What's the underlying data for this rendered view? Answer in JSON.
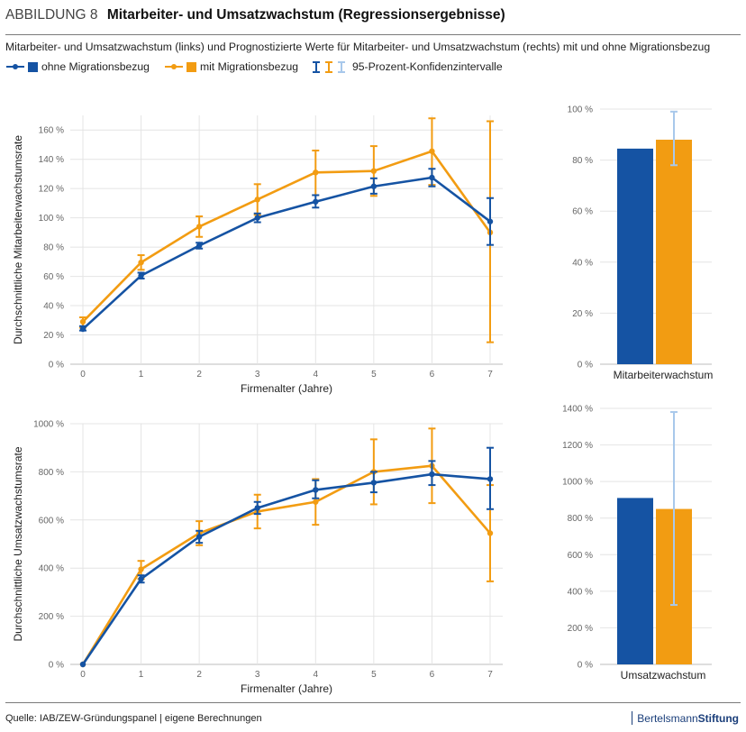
{
  "header": {
    "label": "ABBILDUNG 8",
    "title": "Mitarbeiter- und Umsatzwachstum (Regressionsergebnisse)"
  },
  "subtitle": "Mitarbeiter- und Umsatzwachstum (links) und Prognostizierte Werte für Mitarbeiter- und Umsatzwachstum (rechts) mit und ohne Migrationsbezug",
  "legend": {
    "series1": "ohne Migrationsbezug",
    "series2": "mit Migrationsbezug",
    "ci": "95-Prozent-Konfidenzintervalle"
  },
  "colors": {
    "blue": "#1553a3",
    "orange": "#f29c12",
    "light_blue": "#a8c8eb"
  },
  "footer": {
    "source": "Quelle: IAB/ZEW-Gründungspanel | eigene Berechnungen",
    "brand_normal": "Bertelsmann",
    "brand_bold": "Stiftung"
  },
  "chart_data": [
    {
      "type": "line",
      "id": "employment-line",
      "xlabel": "Firmenalter (Jahre)",
      "ylabel": "Durchschnittliche Mitarbeiterwachstumsrate",
      "x": [
        0,
        1,
        2,
        3,
        4,
        5,
        6,
        7
      ],
      "ylim": [
        0,
        170
      ],
      "yticks": [
        0,
        20,
        40,
        60,
        80,
        100,
        120,
        140,
        160
      ],
      "ytick_labels": [
        "0 %",
        "20 %",
        "40 %",
        "60 %",
        "80 %",
        "100 %",
        "120 %",
        "140 %",
        "160 %"
      ],
      "series": [
        {
          "name": "ohne Migrationsbezug",
          "values": [
            24,
            60.5,
            81,
            100,
            111,
            121.5,
            127.5,
            97.5
          ],
          "ci_low": [
            23,
            58.5,
            79,
            97,
            107,
            116.5,
            121.5,
            81.5
          ],
          "ci_high": [
            26,
            62.5,
            83,
            103,
            115.5,
            127,
            133.5,
            113.5
          ]
        },
        {
          "name": "mit Migrationsbezug",
          "values": [
            29,
            69.5,
            94,
            112.5,
            131,
            132,
            145.5,
            90
          ],
          "ci_low": [
            25,
            64.5,
            87,
            102,
            115.5,
            115,
            122.5,
            15
          ],
          "ci_high": [
            32,
            74.5,
            101,
            123,
            146,
            149,
            168,
            166
          ]
        }
      ]
    },
    {
      "type": "bar",
      "id": "employment-bar",
      "categories": [
        "Mitarbeiterwachstum"
      ],
      "ylim": [
        0,
        100
      ],
      "yticks": [
        0,
        20,
        40,
        60,
        80,
        100
      ],
      "ytick_labels": [
        "0 %",
        "20 %",
        "40 %",
        "60 %",
        "80 %",
        "100 %"
      ],
      "series": [
        {
          "name": "ohne Migrationsbezug",
          "values": [
            84.5
          ]
        },
        {
          "name": "mit Migrationsbezug",
          "values": [
            88
          ],
          "ci_low": [
            78
          ],
          "ci_high": [
            99
          ]
        }
      ]
    },
    {
      "type": "line",
      "id": "revenue-line",
      "xlabel": "Firmenalter (Jahre)",
      "ylabel": "Durchschnittliche Umsatzwachstumsrate",
      "x": [
        0,
        1,
        2,
        3,
        4,
        5,
        6,
        7
      ],
      "ylim": [
        0,
        1000
      ],
      "yticks": [
        0,
        200,
        400,
        600,
        800,
        1000
      ],
      "ytick_labels": [
        "0 %",
        "200 %",
        "400 %",
        "600 %",
        "800 %",
        "1000 %"
      ],
      "series": [
        {
          "name": "ohne Migrationsbezug",
          "values": [
            0,
            355,
            530,
            650,
            725,
            755,
            790,
            770
          ],
          "ci_low": [
            0,
            340,
            505,
            625,
            690,
            715,
            745,
            645
          ],
          "ci_high": [
            0,
            370,
            555,
            675,
            765,
            800,
            845,
            900
          ]
        },
        {
          "name": "mit Migrationsbezug",
          "values": [
            0,
            395,
            545,
            635,
            675,
            800,
            825,
            545
          ],
          "ci_low": [
            0,
            355,
            495,
            565,
            580,
            665,
            670,
            345
          ],
          "ci_high": [
            0,
            430,
            595,
            705,
            770,
            935,
            980,
            745
          ]
        }
      ]
    },
    {
      "type": "bar",
      "id": "revenue-bar",
      "categories": [
        "Umsatzwachstum"
      ],
      "ylim": [
        0,
        1400
      ],
      "yticks": [
        0,
        200,
        400,
        600,
        800,
        1000,
        1200,
        1400
      ],
      "ytick_labels": [
        "0 %",
        "200 %",
        "400 %",
        "600 %",
        "800 %",
        "1000 %",
        "1200 %",
        "1400 %"
      ],
      "series": [
        {
          "name": "ohne Migrationsbezug",
          "values": [
            910
          ]
        },
        {
          "name": "mit Migrationsbezug",
          "values": [
            850
          ],
          "ci_low": [
            325
          ],
          "ci_high": [
            1380
          ]
        }
      ]
    }
  ]
}
